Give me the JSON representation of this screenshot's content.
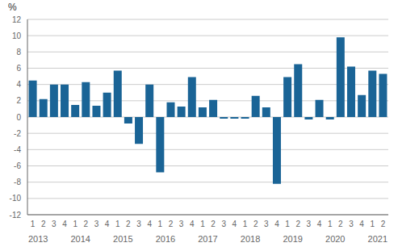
{
  "chart_data": {
    "type": "bar",
    "categories": [
      "1",
      "2",
      "3",
      "4",
      "1",
      "2",
      "3",
      "4",
      "1",
      "2",
      "3",
      "4",
      "1",
      "2",
      "3",
      "4",
      "1",
      "2",
      "3",
      "4",
      "1",
      "2",
      "3",
      "4",
      "1",
      "2",
      "3",
      "4",
      "1",
      "2",
      "3",
      "4",
      "1",
      "2"
    ],
    "values": [
      4.5,
      2.2,
      4.0,
      4.0,
      1.5,
      4.3,
      1.4,
      3.0,
      5.7,
      -0.8,
      -3.3,
      4.0,
      -6.8,
      1.8,
      1.3,
      4.9,
      1.2,
      2.1,
      -0.2,
      -0.2,
      -0.2,
      2.6,
      1.2,
      -8.2,
      4.9,
      6.5,
      -0.3,
      2.1,
      -0.3,
      9.8,
      6.2,
      2.7,
      5.7,
      5.3
    ],
    "color": "#1a6496",
    "ylabel": "%",
    "ylim": [
      -12,
      12
    ],
    "yticks": [
      -12,
      -10,
      -8,
      -6,
      -4,
      -2,
      0,
      2,
      4,
      6,
      8,
      10,
      12
    ],
    "grid": true,
    "annotations": [
      {
        "text": "2013",
        "x": 1.5
      },
      {
        "text": "2014",
        "x": 5.5
      },
      {
        "text": "2015",
        "x": 9.5
      },
      {
        "text": "2016",
        "x": 13.5
      },
      {
        "text": "2017",
        "x": 17.5
      },
      {
        "text": "2018",
        "x": 21.5
      },
      {
        "text": "2019",
        "x": 25.5
      },
      {
        "text": "2020",
        "x": 29.5
      },
      {
        "text": "2021",
        "x": 33.5
      }
    ]
  }
}
